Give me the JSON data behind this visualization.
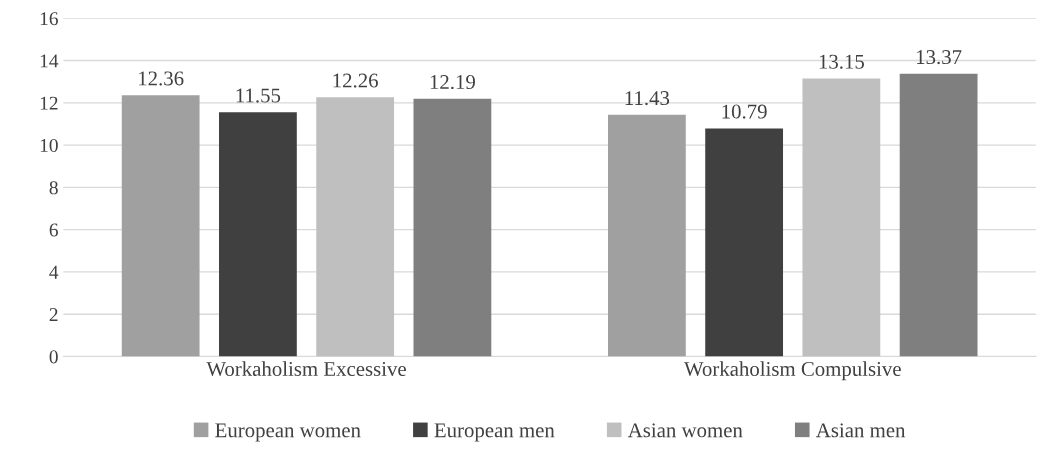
{
  "chart_data": {
    "type": "bar",
    "categories": [
      "Workaholism Excessive",
      "Workaholism Compulsive"
    ],
    "series": [
      {
        "name": "European women",
        "color": "#a0a0a0",
        "values": [
          12.36,
          11.43
        ]
      },
      {
        "name": "European men",
        "color": "#404040",
        "values": [
          11.55,
          10.79
        ]
      },
      {
        "name": "Asian women",
        "color": "#bfbfbf",
        "values": [
          12.26,
          13.15
        ]
      },
      {
        "name": "Asian men",
        "color": "#7f7f7f",
        "values": [
          12.19,
          13.37
        ]
      }
    ],
    "ylim": [
      0,
      16
    ],
    "yticks": [
      0,
      2,
      4,
      6,
      8,
      10,
      12,
      14,
      16
    ],
    "grid": "y",
    "legend": "bottom",
    "data_labels": true
  }
}
